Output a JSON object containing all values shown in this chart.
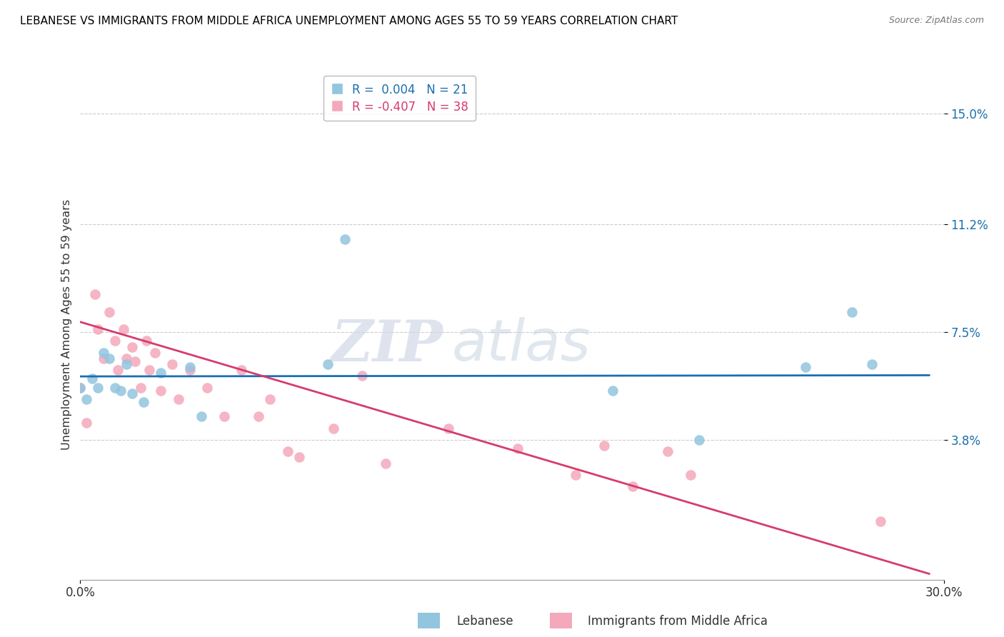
{
  "title": "LEBANESE VS IMMIGRANTS FROM MIDDLE AFRICA UNEMPLOYMENT AMONG AGES 55 TO 59 YEARS CORRELATION CHART",
  "source": "Source: ZipAtlas.com",
  "ylabel": "Unemployment Among Ages 55 to 59 years",
  "xlim": [
    0.0,
    0.3
  ],
  "ylim": [
    -0.01,
    0.165
  ],
  "ytick_positions": [
    0.038,
    0.075,
    0.112,
    0.15
  ],
  "ytick_labels": [
    "3.8%",
    "7.5%",
    "11.2%",
    "15.0%"
  ],
  "legend_r1": "R =  0.004",
  "legend_n1": "N = 21",
  "legend_r2": "R = -0.407",
  "legend_n2": "N = 38",
  "color_blue": "#92c5de",
  "color_pink": "#f4a8bb",
  "line_blue": "#1a6faf",
  "line_pink": "#d63b6e",
  "watermark_zip": "ZIP",
  "watermark_atlas": "atlas",
  "blue_scatter_x": [
    0.0,
    0.002,
    0.004,
    0.006,
    0.008,
    0.01,
    0.012,
    0.014,
    0.016,
    0.018,
    0.022,
    0.028,
    0.038,
    0.042,
    0.086,
    0.092,
    0.185,
    0.215,
    0.252,
    0.268,
    0.275
  ],
  "blue_scatter_y": [
    0.056,
    0.052,
    0.059,
    0.056,
    0.068,
    0.066,
    0.056,
    0.055,
    0.064,
    0.054,
    0.051,
    0.061,
    0.063,
    0.046,
    0.064,
    0.107,
    0.055,
    0.038,
    0.063,
    0.082,
    0.064
  ],
  "pink_scatter_x": [
    0.0,
    0.002,
    0.005,
    0.006,
    0.008,
    0.01,
    0.012,
    0.013,
    0.015,
    0.016,
    0.018,
    0.019,
    0.021,
    0.023,
    0.024,
    0.026,
    0.028,
    0.032,
    0.034,
    0.038,
    0.044,
    0.05,
    0.056,
    0.062,
    0.066,
    0.072,
    0.076,
    0.088,
    0.098,
    0.106,
    0.128,
    0.152,
    0.172,
    0.182,
    0.192,
    0.204,
    0.212,
    0.278
  ],
  "pink_scatter_y": [
    0.056,
    0.044,
    0.088,
    0.076,
    0.066,
    0.082,
    0.072,
    0.062,
    0.076,
    0.066,
    0.07,
    0.065,
    0.056,
    0.072,
    0.062,
    0.068,
    0.055,
    0.064,
    0.052,
    0.062,
    0.056,
    0.046,
    0.062,
    0.046,
    0.052,
    0.034,
    0.032,
    0.042,
    0.06,
    0.03,
    0.042,
    0.035,
    0.026,
    0.036,
    0.022,
    0.034,
    0.026,
    0.01
  ],
  "blue_trend_x": [
    0.0,
    0.295
  ],
  "blue_trend_y": [
    0.0598,
    0.0602
  ],
  "pink_trend_x": [
    0.0,
    0.295
  ],
  "pink_trend_y": [
    0.0785,
    -0.008
  ]
}
